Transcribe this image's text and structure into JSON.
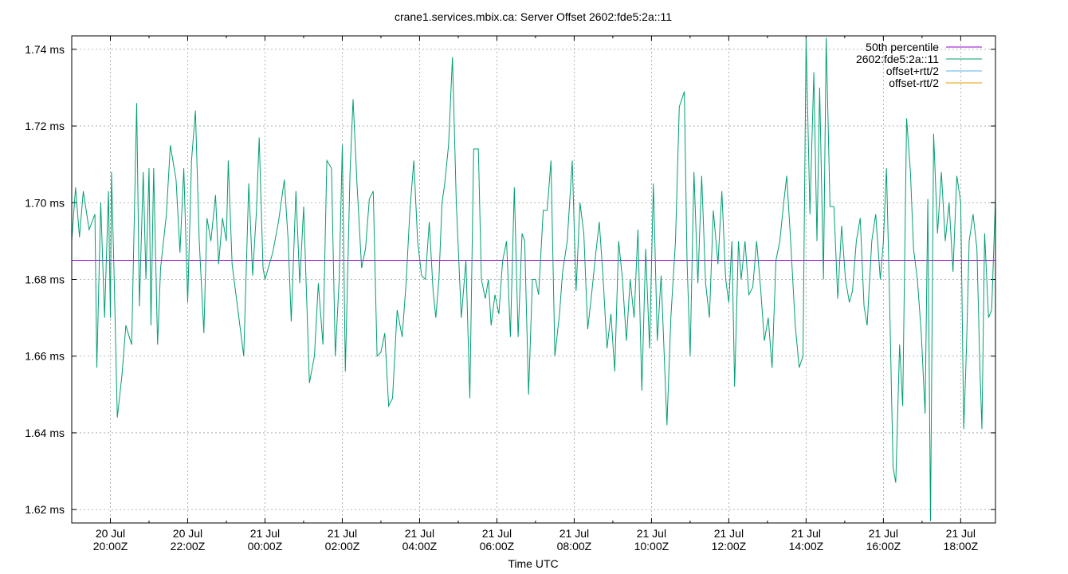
{
  "chart_data": {
    "type": "line",
    "title": "crane1.services.mbix.ca: Server Offset 2602:fde5:2a::11",
    "xlabel": "Time UTC",
    "ylabel": "",
    "x_unit": "hours since 20 Jul 20:00Z",
    "xlim": [
      -1.0,
      22.9
    ],
    "ylim": [
      1.6165,
      1.7435
    ],
    "yticks": [
      {
        "value": 1.62,
        "label": "1.62 ms"
      },
      {
        "value": 1.64,
        "label": "1.64 ms"
      },
      {
        "value": 1.66,
        "label": "1.66 ms"
      },
      {
        "value": 1.68,
        "label": "1.68 ms"
      },
      {
        "value": 1.7,
        "label": "1.70 ms"
      },
      {
        "value": 1.72,
        "label": "1.72 ms"
      },
      {
        "value": 1.74,
        "label": "1.74 ms"
      }
    ],
    "xticks": [
      {
        "value": 0,
        "line1": "20 Jul",
        "line2": "20:00Z"
      },
      {
        "value": 2,
        "line1": "20 Jul",
        "line2": "22:00Z"
      },
      {
        "value": 4,
        "line1": "21 Jul",
        "line2": "00:00Z"
      },
      {
        "value": 6,
        "line1": "21 Jul",
        "line2": "02:00Z"
      },
      {
        "value": 8,
        "line1": "21 Jul",
        "line2": "04:00Z"
      },
      {
        "value": 10,
        "line1": "21 Jul",
        "line2": "06:00Z"
      },
      {
        "value": 12,
        "line1": "21 Jul",
        "line2": "08:00Z"
      },
      {
        "value": 14,
        "line1": "21 Jul",
        "line2": "10:00Z"
      },
      {
        "value": 16,
        "line1": "21 Jul",
        "line2": "12:00Z"
      },
      {
        "value": 18,
        "line1": "21 Jul",
        "line2": "14:00Z"
      },
      {
        "value": 20,
        "line1": "21 Jul",
        "line2": "16:00Z"
      },
      {
        "value": 22,
        "line1": "21 Jul",
        "line2": "18:00Z"
      }
    ],
    "grid": true,
    "legend_position": "top-right",
    "legend": [
      {
        "name": "50th percentile",
        "color": "#9400d3"
      },
      {
        "name": "2602:fde5:2a::11",
        "color": "#009e73"
      },
      {
        "name": "offset+rtt/2",
        "color": "#56b4e9"
      },
      {
        "name": "offset-rtt/2",
        "color": "#e69f00"
      }
    ],
    "percentile_50": 1.685,
    "series": [
      {
        "name": "2602:fde5:2a::11",
        "color": "#009e73",
        "points": [
          [
            -1.0,
            1.69
          ],
          [
            -0.9,
            1.704
          ],
          [
            -0.8,
            1.691
          ],
          [
            -0.7,
            1.703
          ],
          [
            -0.55,
            1.693
          ],
          [
            -0.4,
            1.697
          ],
          [
            -0.35,
            1.657
          ],
          [
            -0.25,
            1.7
          ],
          [
            -0.15,
            1.67
          ],
          [
            -0.05,
            1.703
          ],
          [
            0.0,
            1.67
          ],
          [
            0.03,
            1.708
          ],
          [
            0.1,
            1.68
          ],
          [
            0.18,
            1.644
          ],
          [
            0.3,
            1.655
          ],
          [
            0.4,
            1.668
          ],
          [
            0.55,
            1.663
          ],
          [
            0.68,
            1.726
          ],
          [
            0.75,
            1.673
          ],
          [
            0.85,
            1.708
          ],
          [
            0.92,
            1.68
          ],
          [
            1.0,
            1.709
          ],
          [
            1.05,
            1.668
          ],
          [
            1.12,
            1.709
          ],
          [
            1.22,
            1.663
          ],
          [
            1.3,
            1.683
          ],
          [
            1.45,
            1.697
          ],
          [
            1.55,
            1.715
          ],
          [
            1.7,
            1.706
          ],
          [
            1.8,
            1.687
          ],
          [
            1.9,
            1.709
          ],
          [
            2.0,
            1.674
          ],
          [
            2.1,
            1.711
          ],
          [
            2.2,
            1.724
          ],
          [
            2.3,
            1.69
          ],
          [
            2.42,
            1.666
          ],
          [
            2.5,
            1.696
          ],
          [
            2.6,
            1.69
          ],
          [
            2.72,
            1.702
          ],
          [
            2.8,
            1.684
          ],
          [
            2.9,
            1.696
          ],
          [
            3.0,
            1.69
          ],
          [
            3.05,
            1.711
          ],
          [
            3.15,
            1.684
          ],
          [
            3.3,
            1.672
          ],
          [
            3.45,
            1.66
          ],
          [
            3.58,
            1.705
          ],
          [
            3.68,
            1.681
          ],
          [
            3.78,
            1.698
          ],
          [
            3.85,
            1.717
          ],
          [
            3.95,
            1.683
          ],
          [
            4.0,
            1.68
          ],
          [
            4.2,
            1.687
          ],
          [
            4.35,
            1.695
          ],
          [
            4.5,
            1.706
          ],
          [
            4.6,
            1.69
          ],
          [
            4.68,
            1.669
          ],
          [
            4.8,
            1.703
          ],
          [
            4.9,
            1.679
          ],
          [
            5.0,
            1.699
          ],
          [
            5.15,
            1.653
          ],
          [
            5.28,
            1.66
          ],
          [
            5.38,
            1.679
          ],
          [
            5.5,
            1.663
          ],
          [
            5.6,
            1.711
          ],
          [
            5.72,
            1.709
          ],
          [
            5.82,
            1.66
          ],
          [
            5.92,
            1.68
          ],
          [
            6.0,
            1.715
          ],
          [
            6.08,
            1.656
          ],
          [
            6.2,
            1.708
          ],
          [
            6.28,
            1.727
          ],
          [
            6.38,
            1.705
          ],
          [
            6.5,
            1.683
          ],
          [
            6.6,
            1.688
          ],
          [
            6.7,
            1.701
          ],
          [
            6.8,
            1.703
          ],
          [
            6.9,
            1.66
          ],
          [
            7.0,
            1.661
          ],
          [
            7.1,
            1.666
          ],
          [
            7.2,
            1.647
          ],
          [
            7.3,
            1.649
          ],
          [
            7.42,
            1.672
          ],
          [
            7.55,
            1.665
          ],
          [
            7.65,
            1.679
          ],
          [
            7.75,
            1.698
          ],
          [
            7.85,
            1.711
          ],
          [
            7.95,
            1.69
          ],
          [
            8.05,
            1.681
          ],
          [
            8.15,
            1.68
          ],
          [
            8.25,
            1.695
          ],
          [
            8.35,
            1.677
          ],
          [
            8.42,
            1.67
          ],
          [
            8.5,
            1.68
          ],
          [
            8.58,
            1.7
          ],
          [
            8.65,
            1.705
          ],
          [
            8.75,
            1.715
          ],
          [
            8.85,
            1.738
          ],
          [
            8.95,
            1.7
          ],
          [
            9.08,
            1.67
          ],
          [
            9.2,
            1.685
          ],
          [
            9.3,
            1.649
          ],
          [
            9.4,
            1.714
          ],
          [
            9.52,
            1.714
          ],
          [
            9.6,
            1.68
          ],
          [
            9.7,
            1.675
          ],
          [
            9.78,
            1.68
          ],
          [
            9.85,
            1.668
          ],
          [
            9.95,
            1.676
          ],
          [
            10.05,
            1.671
          ],
          [
            10.15,
            1.685
          ],
          [
            10.25,
            1.69
          ],
          [
            10.35,
            1.665
          ],
          [
            10.45,
            1.704
          ],
          [
            10.55,
            1.665
          ],
          [
            10.65,
            1.692
          ],
          [
            10.72,
            1.69
          ],
          [
            10.82,
            1.65
          ],
          [
            10.92,
            1.68
          ],
          [
            11.0,
            1.68
          ],
          [
            11.08,
            1.676
          ],
          [
            11.2,
            1.698
          ],
          [
            11.3,
            1.698
          ],
          [
            11.4,
            1.711
          ],
          [
            11.5,
            1.66
          ],
          [
            11.62,
            1.671
          ],
          [
            11.7,
            1.682
          ],
          [
            11.82,
            1.69
          ],
          [
            11.95,
            1.711
          ],
          [
            12.05,
            1.677
          ],
          [
            12.15,
            1.7
          ],
          [
            12.25,
            1.692
          ],
          [
            12.35,
            1.667
          ],
          [
            12.45,
            1.676
          ],
          [
            12.55,
            1.686
          ],
          [
            12.65,
            1.695
          ],
          [
            12.75,
            1.68
          ],
          [
            12.85,
            1.662
          ],
          [
            12.95,
            1.671
          ],
          [
            13.05,
            1.656
          ],
          [
            13.15,
            1.69
          ],
          [
            13.25,
            1.68
          ],
          [
            13.35,
            1.664
          ],
          [
            13.45,
            1.68
          ],
          [
            13.55,
            1.67
          ],
          [
            13.65,
            1.693
          ],
          [
            13.75,
            1.651
          ],
          [
            13.85,
            1.688
          ],
          [
            13.95,
            1.662
          ],
          [
            14.05,
            1.705
          ],
          [
            14.15,
            1.664
          ],
          [
            14.25,
            1.681
          ],
          [
            14.4,
            1.642
          ],
          [
            14.5,
            1.67
          ],
          [
            14.62,
            1.69
          ],
          [
            14.72,
            1.725
          ],
          [
            14.85,
            1.729
          ],
          [
            14.92,
            1.685
          ],
          [
            15.0,
            1.66
          ],
          [
            15.1,
            1.708
          ],
          [
            15.2,
            1.679
          ],
          [
            15.3,
            1.707
          ],
          [
            15.4,
            1.679
          ],
          [
            15.5,
            1.67
          ],
          [
            15.6,
            1.698
          ],
          [
            15.72,
            1.684
          ],
          [
            15.82,
            1.703
          ],
          [
            15.92,
            1.68
          ],
          [
            16.0,
            1.674
          ],
          [
            16.08,
            1.69
          ],
          [
            16.15,
            1.652
          ],
          [
            16.25,
            1.69
          ],
          [
            16.32,
            1.68
          ],
          [
            16.42,
            1.69
          ],
          [
            16.52,
            1.676
          ],
          [
            16.62,
            1.678
          ],
          [
            16.72,
            1.69
          ],
          [
            16.82,
            1.678
          ],
          [
            16.92,
            1.664
          ],
          [
            17.02,
            1.67
          ],
          [
            17.12,
            1.657
          ],
          [
            17.22,
            1.685
          ],
          [
            17.32,
            1.69
          ],
          [
            17.42,
            1.7
          ],
          [
            17.5,
            1.707
          ],
          [
            17.6,
            1.69
          ],
          [
            17.72,
            1.668
          ],
          [
            17.82,
            1.657
          ],
          [
            17.92,
            1.66
          ],
          [
            18.0,
            1.743
          ],
          [
            18.1,
            1.697
          ],
          [
            18.2,
            1.734
          ],
          [
            18.28,
            1.69
          ],
          [
            18.35,
            1.73
          ],
          [
            18.45,
            1.68
          ],
          [
            18.52,
            1.743
          ],
          [
            18.62,
            1.699
          ],
          [
            18.72,
            1.699
          ],
          [
            18.82,
            1.675
          ],
          [
            18.92,
            1.694
          ],
          [
            19.02,
            1.68
          ],
          [
            19.12,
            1.674
          ],
          [
            19.2,
            1.677
          ],
          [
            19.3,
            1.69
          ],
          [
            19.4,
            1.696
          ],
          [
            19.5,
            1.673
          ],
          [
            19.58,
            1.668
          ],
          [
            19.7,
            1.69
          ],
          [
            19.8,
            1.697
          ],
          [
            19.92,
            1.68
          ],
          [
            20.0,
            1.69
          ],
          [
            20.08,
            1.709
          ],
          [
            20.15,
            1.68
          ],
          [
            20.25,
            1.631
          ],
          [
            20.32,
            1.627
          ],
          [
            20.42,
            1.663
          ],
          [
            20.5,
            1.647
          ],
          [
            20.6,
            1.722
          ],
          [
            20.7,
            1.708
          ],
          [
            20.78,
            1.688
          ],
          [
            20.88,
            1.68
          ],
          [
            20.98,
            1.666
          ],
          [
            21.08,
            1.645
          ],
          [
            21.15,
            1.701
          ],
          [
            21.22,
            1.617
          ],
          [
            21.3,
            1.718
          ],
          [
            21.4,
            1.692
          ],
          [
            21.5,
            1.708
          ],
          [
            21.6,
            1.69
          ],
          [
            21.7,
            1.7
          ],
          [
            21.8,
            1.682
          ],
          [
            21.9,
            1.707
          ],
          [
            22.0,
            1.7
          ],
          [
            22.08,
            1.641
          ],
          [
            22.15,
            1.662
          ],
          [
            22.22,
            1.69
          ],
          [
            22.32,
            1.697
          ],
          [
            22.42,
            1.688
          ],
          [
            22.5,
            1.656
          ],
          [
            22.55,
            1.641
          ],
          [
            22.62,
            1.692
          ],
          [
            22.72,
            1.67
          ],
          [
            22.8,
            1.672
          ],
          [
            22.9,
            1.701
          ]
        ]
      },
      {
        "name": "offset+rtt/2",
        "color": "#56b4e9",
        "points": []
      },
      {
        "name": "offset-rtt/2",
        "color": "#e69f00",
        "points": []
      }
    ]
  }
}
